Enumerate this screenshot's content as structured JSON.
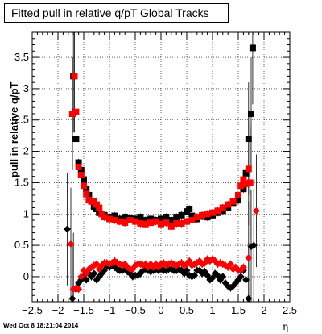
{
  "title": "Fitted pull in relative q/pT  Global Tracks",
  "footer_date": "Wed Oct  8 18:21:04 2014",
  "colors": {
    "series_black": "#000000",
    "series_red": "#ff0000",
    "grid": "#000000"
  },
  "chart_data": {
    "type": "scatter",
    "title": "Fitted pull in relative q/pT  Global Tracks",
    "xlabel": "η",
    "ylabel": "pull in relative q/pT",
    "xlim": [
      -2.5,
      2.5
    ],
    "ylim": [
      -0.4,
      3.9
    ],
    "x_ticks": [
      "−2.5",
      "−2",
      "−1.5",
      "−1",
      "−0.5",
      "0",
      "0.5",
      "1",
      "1.5",
      "2",
      "2.5"
    ],
    "y_ticks": [
      "0",
      "0.5",
      "1",
      "1.5",
      "2",
      "2.5",
      "3",
      "3.5"
    ],
    "grid": true,
    "series": [
      {
        "quantity": "width",
        "marker": "square",
        "color": "black",
        "points": [
          [
            -1.72,
            2.6
          ],
          [
            -1.7,
            3.2
          ],
          [
            -1.65,
            2.2
          ],
          [
            -1.6,
            1.82
          ],
          [
            -1.55,
            1.7
          ],
          [
            -1.5,
            1.55
          ],
          [
            -1.45,
            1.4
          ],
          [
            -1.4,
            1.3
          ],
          [
            -1.35,
            1.2
          ],
          [
            -1.3,
            1.12
          ],
          [
            -1.25,
            1.08
          ],
          [
            -1.2,
            1.02
          ],
          [
            -1.15,
            1.0
          ],
          [
            -1.1,
            0.98
          ],
          [
            -1.0,
            0.95
          ],
          [
            -0.9,
            0.97
          ],
          [
            -0.8,
            0.92
          ],
          [
            -0.7,
            0.95
          ],
          [
            -0.6,
            0.93
          ],
          [
            -0.5,
            0.92
          ],
          [
            -0.4,
            0.95
          ],
          [
            -0.3,
            0.9
          ],
          [
            -0.2,
            0.92
          ],
          [
            -0.1,
            0.9
          ],
          [
            0.0,
            0.92
          ],
          [
            0.1,
            0.95
          ],
          [
            0.2,
            0.9
          ],
          [
            0.3,
            0.95
          ],
          [
            0.4,
            0.98
          ],
          [
            0.5,
            1.04
          ],
          [
            0.55,
            1.08
          ],
          [
            0.6,
            0.97
          ],
          [
            0.7,
            0.92
          ],
          [
            0.8,
            0.96
          ],
          [
            0.9,
            0.95
          ],
          [
            1.0,
            0.98
          ],
          [
            1.1,
            1.02
          ],
          [
            1.2,
            1.05
          ],
          [
            1.3,
            1.1
          ],
          [
            1.4,
            1.18
          ],
          [
            1.5,
            1.22
          ],
          [
            1.6,
            1.4
          ],
          [
            1.65,
            1.65
          ],
          [
            1.7,
            2.2
          ],
          [
            1.75,
            2.6
          ],
          [
            1.78,
            3.65
          ]
        ]
      },
      {
        "quantity": "width",
        "marker": "square",
        "color": "red",
        "points": [
          [
            -1.72,
            2.6
          ],
          [
            -1.68,
            3.2
          ],
          [
            -1.65,
            2.63
          ],
          [
            -1.6,
            1.75
          ],
          [
            -1.55,
            1.62
          ],
          [
            -1.5,
            1.45
          ],
          [
            -1.45,
            1.32
          ],
          [
            -1.4,
            1.22
          ],
          [
            -1.35,
            1.2
          ],
          [
            -1.3,
            1.2
          ],
          [
            -1.25,
            1.15
          ],
          [
            -1.2,
            1.1
          ],
          [
            -1.15,
            1.0
          ],
          [
            -1.1,
            0.95
          ],
          [
            -1.0,
            0.92
          ],
          [
            -0.9,
            0.9
          ],
          [
            -0.8,
            0.88
          ],
          [
            -0.7,
            0.86
          ],
          [
            -0.6,
            0.9
          ],
          [
            -0.5,
            0.88
          ],
          [
            -0.4,
            0.85
          ],
          [
            -0.3,
            0.84
          ],
          [
            -0.2,
            0.86
          ],
          [
            -0.1,
            0.88
          ],
          [
            0.0,
            0.84
          ],
          [
            0.1,
            0.86
          ],
          [
            0.2,
            0.8
          ],
          [
            0.3,
            0.85
          ],
          [
            0.4,
            0.85
          ],
          [
            0.5,
            0.88
          ],
          [
            0.6,
            0.9
          ],
          [
            0.7,
            0.95
          ],
          [
            0.8,
            0.98
          ],
          [
            0.9,
            1.0
          ],
          [
            1.0,
            1.02
          ],
          [
            1.1,
            1.05
          ],
          [
            1.2,
            1.1
          ],
          [
            1.3,
            1.15
          ],
          [
            1.4,
            1.2
          ],
          [
            1.5,
            1.3
          ],
          [
            1.55,
            1.45
          ],
          [
            1.6,
            1.55
          ],
          [
            1.65,
            1.48
          ],
          [
            1.7,
            1.72
          ],
          [
            1.73,
            1.5
          ]
        ]
      },
      {
        "quantity": "mean",
        "marker": "diamond",
        "color": "black",
        "points": [
          [
            -1.82,
            0.76
          ],
          [
            -1.72,
            -0.35
          ],
          [
            -1.65,
            -0.2
          ],
          [
            -1.6,
            -0.1
          ],
          [
            -1.55,
            -0.05
          ],
          [
            -1.5,
            0.0
          ],
          [
            -1.45,
            -0.05
          ],
          [
            -1.4,
            0.05
          ],
          [
            -1.35,
            0.0
          ],
          [
            -1.3,
            0.05
          ],
          [
            -1.25,
            -0.05
          ],
          [
            -1.2,
            0.0
          ],
          [
            -1.15,
            0.05
          ],
          [
            -1.1,
            0.1
          ],
          [
            -1.05,
            0.18
          ],
          [
            -1.0,
            0.15
          ],
          [
            -0.95,
            0.18
          ],
          [
            -0.9,
            0.15
          ],
          [
            -0.85,
            0.12
          ],
          [
            -0.8,
            0.1
          ],
          [
            -0.75,
            0.1
          ],
          [
            -0.7,
            0.12
          ],
          [
            -0.65,
            0.08
          ],
          [
            -0.6,
            0.05
          ],
          [
            -0.55,
            0.0
          ],
          [
            -0.5,
            0.02
          ],
          [
            -0.45,
            0.02
          ],
          [
            -0.4,
            0.05
          ],
          [
            -0.35,
            0.1
          ],
          [
            -0.3,
            0.12
          ],
          [
            -0.25,
            0.1
          ],
          [
            -0.2,
            0.08
          ],
          [
            -0.15,
            0.1
          ],
          [
            -0.1,
            0.12
          ],
          [
            -0.05,
            0.1
          ],
          [
            0.0,
            0.12
          ],
          [
            0.05,
            0.1
          ],
          [
            0.1,
            0.1
          ],
          [
            0.15,
            0.12
          ],
          [
            0.2,
            0.12
          ],
          [
            0.25,
            0.1
          ],
          [
            0.3,
            0.1
          ],
          [
            0.35,
            0.12
          ],
          [
            0.4,
            0.1
          ],
          [
            0.45,
            0.05
          ],
          [
            0.5,
            0.1
          ],
          [
            0.55,
            0.02
          ],
          [
            0.6,
            0.0
          ],
          [
            0.65,
            0.02
          ],
          [
            0.7,
            0.1
          ],
          [
            0.75,
            0.1
          ],
          [
            0.8,
            0.05
          ],
          [
            0.85,
            0.08
          ],
          [
            0.9,
            0.02
          ],
          [
            0.95,
            -0.05
          ],
          [
            1.0,
            -0.02
          ],
          [
            1.05,
            0.05
          ],
          [
            1.1,
            0.02
          ],
          [
            1.15,
            -0.05
          ],
          [
            1.2,
            0.0
          ],
          [
            1.25,
            -0.1
          ],
          [
            1.3,
            -0.15
          ],
          [
            1.35,
            -0.18
          ],
          [
            1.4,
            -0.15
          ],
          [
            1.45,
            -0.1
          ],
          [
            1.5,
            -0.05
          ],
          [
            1.55,
            0.0
          ],
          [
            1.6,
            0.1
          ],
          [
            1.65,
            -0.05
          ],
          [
            1.7,
            -0.35
          ],
          [
            1.75,
            0.48
          ],
          [
            1.8,
            0.5
          ]
        ]
      },
      {
        "quantity": "mean",
        "marker": "diamond",
        "color": "red",
        "points": [
          [
            -1.75,
            0.52
          ],
          [
            -1.7,
            -0.2
          ],
          [
            -1.65,
            -0.18
          ],
          [
            -1.6,
            -0.2
          ],
          [
            -1.55,
            0.0
          ],
          [
            -1.5,
            0.1
          ],
          [
            -1.45,
            0.05
          ],
          [
            -1.4,
            0.12
          ],
          [
            -1.35,
            0.15
          ],
          [
            -1.3,
            0.18
          ],
          [
            -1.25,
            0.2
          ],
          [
            -1.2,
            0.12
          ],
          [
            -1.15,
            0.18
          ],
          [
            -1.1,
            0.22
          ],
          [
            -1.05,
            0.22
          ],
          [
            -1.0,
            0.2
          ],
          [
            -0.95,
            0.22
          ],
          [
            -0.9,
            0.25
          ],
          [
            -0.85,
            0.22
          ],
          [
            -0.8,
            0.2
          ],
          [
            -0.75,
            0.18
          ],
          [
            -0.7,
            0.2
          ],
          [
            -0.65,
            0.15
          ],
          [
            -0.6,
            0.12
          ],
          [
            -0.55,
            0.12
          ],
          [
            -0.5,
            0.18
          ],
          [
            -0.45,
            0.2
          ],
          [
            -0.4,
            0.2
          ],
          [
            -0.35,
            0.18
          ],
          [
            -0.3,
            0.2
          ],
          [
            -0.25,
            0.15
          ],
          [
            -0.2,
            0.2
          ],
          [
            -0.15,
            0.15
          ],
          [
            -0.1,
            0.2
          ],
          [
            -0.05,
            0.15
          ],
          [
            0.0,
            0.2
          ],
          [
            0.05,
            0.22
          ],
          [
            0.1,
            0.18
          ],
          [
            0.15,
            0.2
          ],
          [
            0.2,
            0.22
          ],
          [
            0.25,
            0.2
          ],
          [
            0.3,
            0.18
          ],
          [
            0.35,
            0.2
          ],
          [
            0.4,
            0.22
          ],
          [
            0.45,
            0.18
          ],
          [
            0.5,
            0.2
          ],
          [
            0.55,
            0.25
          ],
          [
            0.6,
            0.18
          ],
          [
            0.65,
            0.2
          ],
          [
            0.7,
            0.22
          ],
          [
            0.75,
            0.25
          ],
          [
            0.8,
            0.2
          ],
          [
            0.85,
            0.22
          ],
          [
            0.9,
            0.28
          ],
          [
            0.95,
            0.25
          ],
          [
            1.0,
            0.28
          ],
          [
            1.05,
            0.25
          ],
          [
            1.1,
            0.2
          ],
          [
            1.15,
            0.22
          ],
          [
            1.2,
            0.2
          ],
          [
            1.25,
            0.18
          ],
          [
            1.3,
            0.15
          ],
          [
            1.35,
            0.2
          ],
          [
            1.4,
            0.12
          ],
          [
            1.45,
            0.15
          ],
          [
            1.5,
            0.1
          ],
          [
            1.55,
            0.1
          ],
          [
            1.6,
            0.15
          ],
          [
            1.7,
            0.3
          ],
          [
            1.85,
            1.05
          ]
        ]
      }
    ]
  }
}
